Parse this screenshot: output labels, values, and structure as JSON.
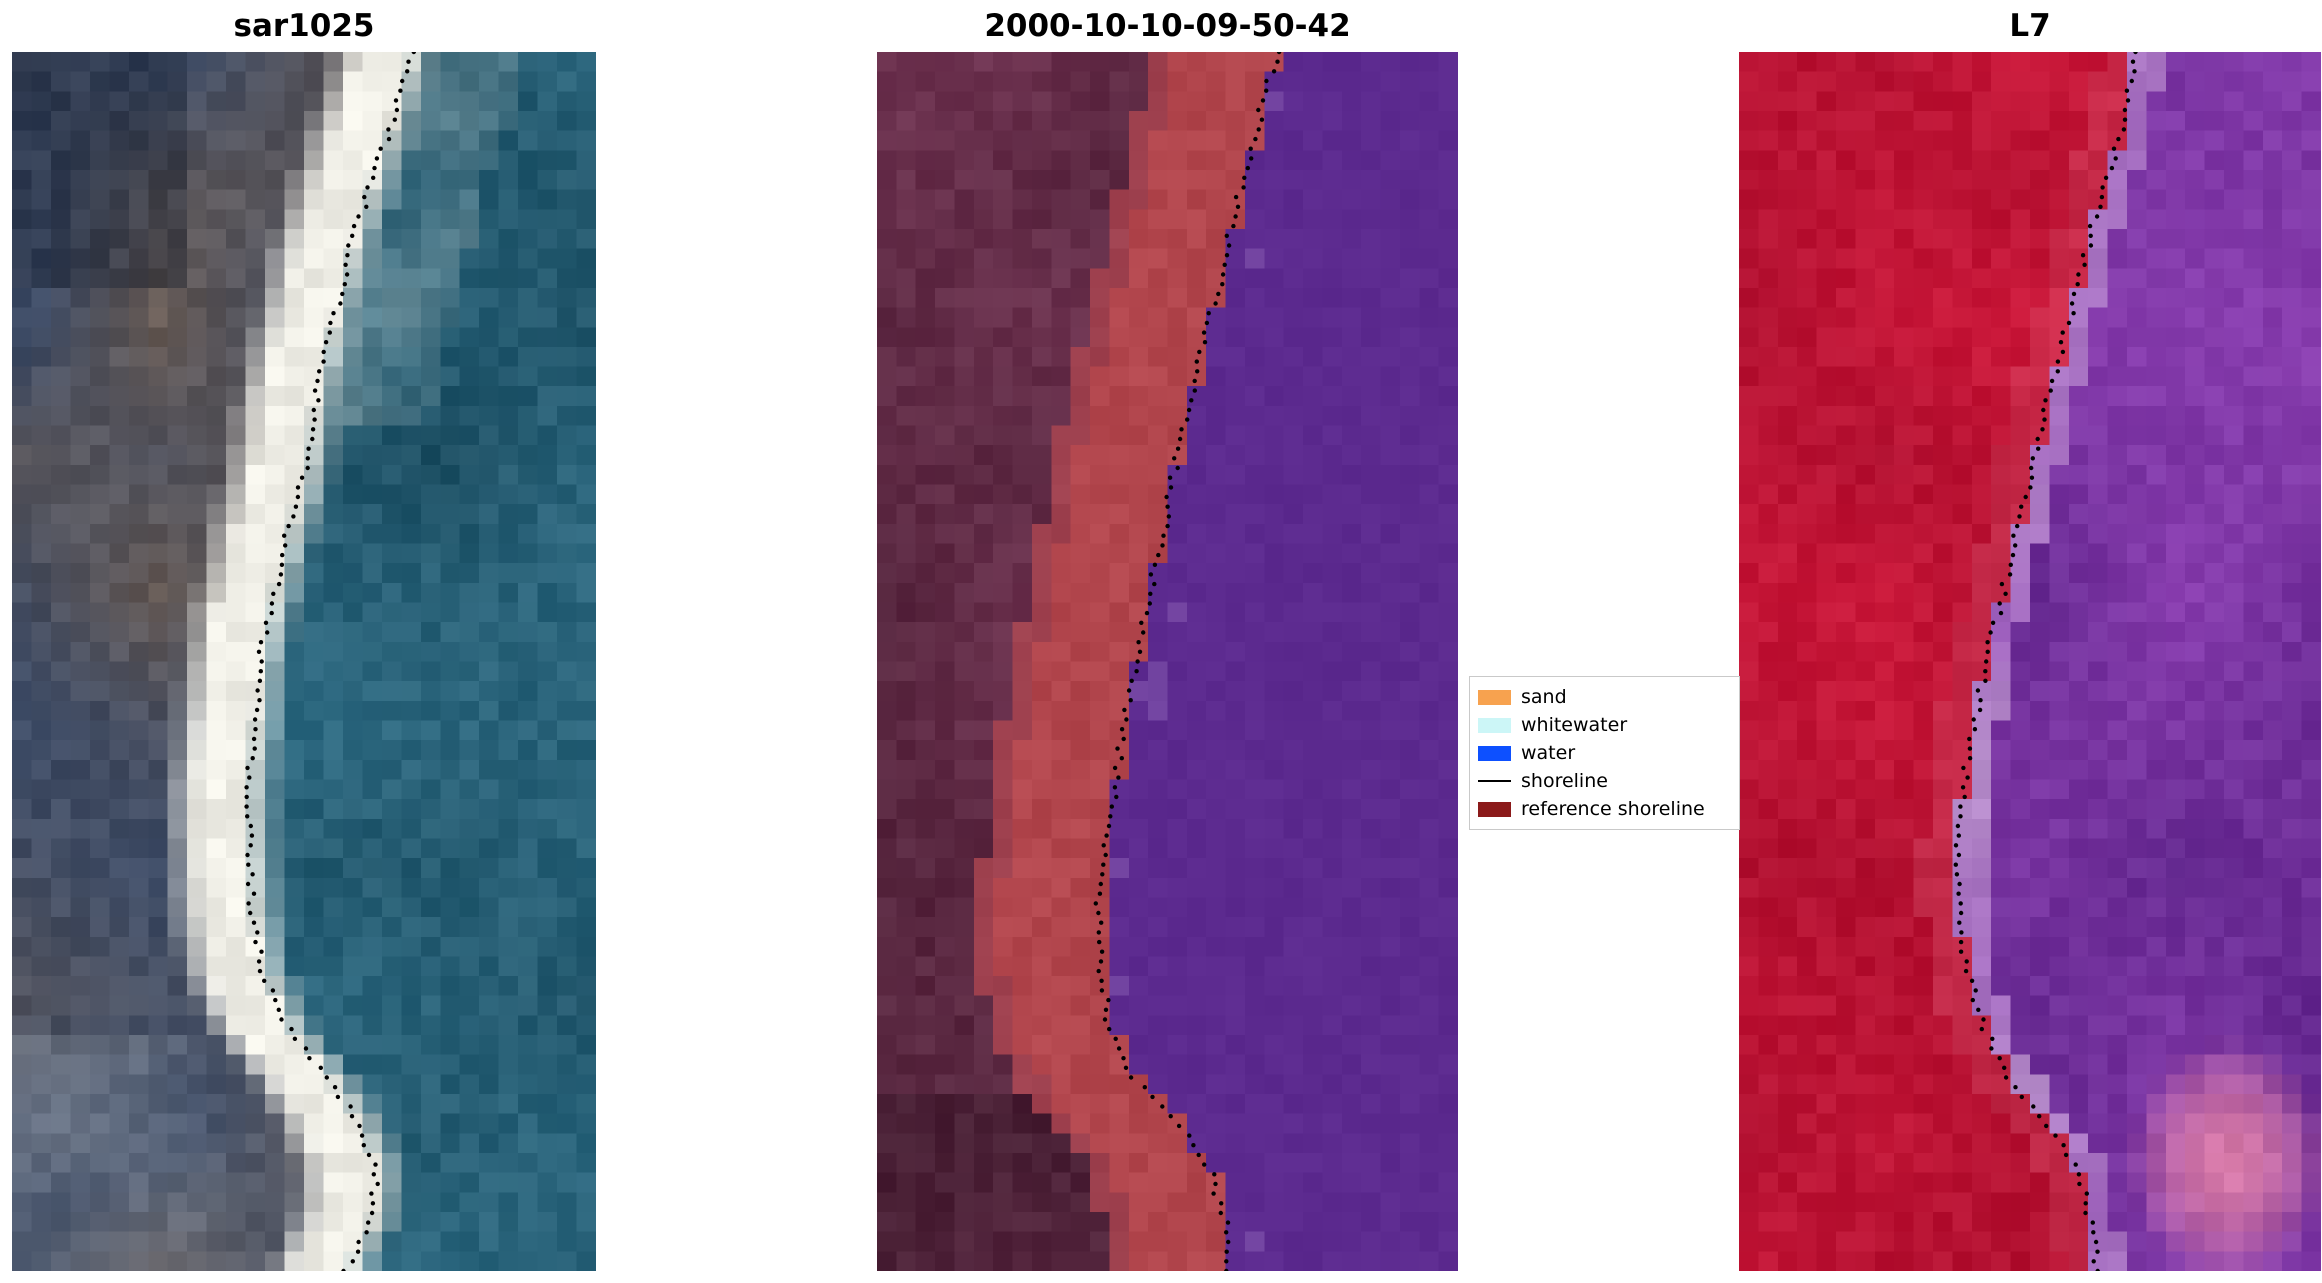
{
  "figure_background": "#ffffff",
  "chart_data": {
    "type": "image",
    "panels": [
      {
        "title": "sar1025",
        "kind": "sar",
        "seed": 11,
        "colors": {
          "water": "#2f6c84",
          "water_dark": "#1e5064",
          "land": "#3e4c66",
          "land_brown": "#6a5c54",
          "bright": "#efeee6",
          "gray_patch": "#9aa0a8"
        },
        "shoreline": [
          [
            0,
            0.685
          ],
          [
            0.05,
            0.655
          ],
          [
            0.1,
            0.62
          ],
          [
            0.15,
            0.585
          ],
          [
            0.2,
            0.56
          ],
          [
            0.25,
            0.535
          ],
          [
            0.3,
            0.515
          ],
          [
            0.35,
            0.5
          ],
          [
            0.4,
            0.47
          ],
          [
            0.45,
            0.445
          ],
          [
            0.5,
            0.425
          ],
          [
            0.55,
            0.415
          ],
          [
            0.6,
            0.405
          ],
          [
            0.65,
            0.405
          ],
          [
            0.7,
            0.41
          ],
          [
            0.75,
            0.425
          ],
          [
            0.8,
            0.47
          ],
          [
            0.84,
            0.54
          ],
          [
            0.88,
            0.595
          ],
          [
            0.92,
            0.625
          ],
          [
            0.96,
            0.615
          ],
          [
            1,
            0.57
          ]
        ]
      },
      {
        "title": "2000-10-10-09-50-42",
        "kind": "classified",
        "seed": 22,
        "colors": {
          "water": "#5c2a8f",
          "water_light": "#8a5fb4",
          "sand": "#b2464d",
          "land": "#703452",
          "land_dark": "#54243c"
        },
        "shoreline": [
          [
            0,
            0.69
          ],
          [
            0.05,
            0.66
          ],
          [
            0.1,
            0.635
          ],
          [
            0.15,
            0.605
          ],
          [
            0.2,
            0.585
          ],
          [
            0.25,
            0.555
          ],
          [
            0.3,
            0.53
          ],
          [
            0.35,
            0.51
          ],
          [
            0.4,
            0.49
          ],
          [
            0.45,
            0.465
          ],
          [
            0.5,
            0.445
          ],
          [
            0.55,
            0.425
          ],
          [
            0.6,
            0.41
          ],
          [
            0.65,
            0.395
          ],
          [
            0.7,
            0.38
          ],
          [
            0.75,
            0.385
          ],
          [
            0.8,
            0.4
          ],
          [
            0.84,
            0.44
          ],
          [
            0.88,
            0.52
          ],
          [
            0.92,
            0.575
          ],
          [
            0.96,
            0.6
          ],
          [
            1,
            0.605
          ]
        ]
      },
      {
        "title": "L7",
        "kind": "l7",
        "seed": 33,
        "colors": {
          "red": "#cc183a",
          "red_dark": "#b01030",
          "red_pink": "#d8647c",
          "purple": "#8a3eb0",
          "purple_dark": "#60268c",
          "lavender": "#bb94ce",
          "pink": "#e080a8"
        },
        "shoreline": [
          [
            0,
            0.68
          ],
          [
            0.05,
            0.665
          ],
          [
            0.1,
            0.635
          ],
          [
            0.15,
            0.605
          ],
          [
            0.2,
            0.58
          ],
          [
            0.25,
            0.55
          ],
          [
            0.3,
            0.525
          ],
          [
            0.35,
            0.5
          ],
          [
            0.4,
            0.475
          ],
          [
            0.45,
            0.45
          ],
          [
            0.5,
            0.425
          ],
          [
            0.55,
            0.405
          ],
          [
            0.6,
            0.385
          ],
          [
            0.65,
            0.375
          ],
          [
            0.7,
            0.375
          ],
          [
            0.75,
            0.39
          ],
          [
            0.8,
            0.42
          ],
          [
            0.84,
            0.46
          ],
          [
            0.88,
            0.53
          ],
          [
            0.92,
            0.585
          ],
          [
            0.96,
            0.605
          ],
          [
            1,
            0.615
          ]
        ]
      }
    ],
    "legend": {
      "items": [
        {
          "label": "sand",
          "color": "#f7a24f",
          "kind": "patch"
        },
        {
          "label": "whitewater",
          "color": "#ccf6f7",
          "kind": "patch"
        },
        {
          "label": "water",
          "color": "#0d50ff",
          "kind": "patch"
        },
        {
          "label": "shoreline",
          "color": "#000000",
          "kind": "line"
        },
        {
          "label": "reference shoreline",
          "color": "#8b1a1a",
          "kind": "patch"
        }
      ]
    }
  }
}
